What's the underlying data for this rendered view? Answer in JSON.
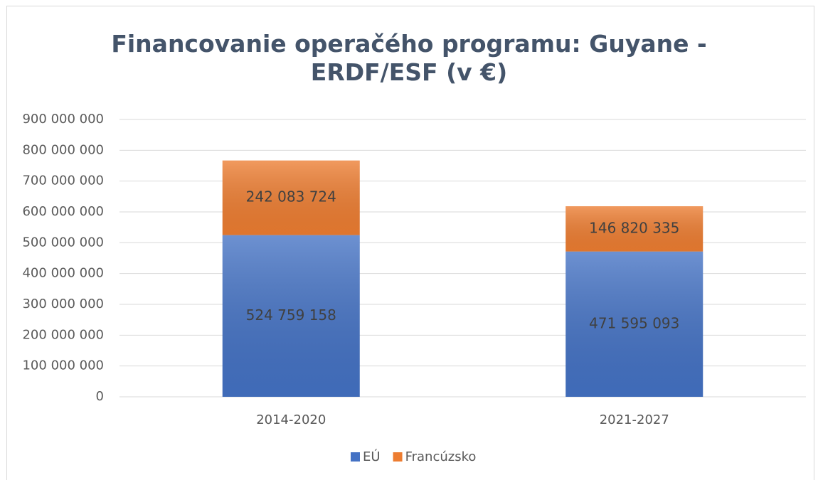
{
  "chart_data": {
    "type": "bar",
    "stacked": true,
    "title": "Financovanie operačého programu: Guyane - ERDF/ESF (v €)",
    "categories": [
      "2014-2020",
      "2021-2027"
    ],
    "series": [
      {
        "name": "EÚ",
        "color": "#4472c4",
        "values": [
          524759158,
          471595093
        ],
        "value_labels": [
          "524 759 158",
          "471 595 093"
        ]
      },
      {
        "name": "Francúzsko",
        "color": "#ed7d31",
        "values": [
          242083724,
          146820335
        ],
        "value_labels": [
          "242 083 724",
          "146 820 335"
        ]
      }
    ],
    "ylim": [
      0,
      900000000
    ],
    "yticks": [
      0,
      {
        "value": 100000000,
        "label": "100 000 000"
      },
      {
        "value": 200000000,
        "label": "200 000 000"
      },
      {
        "value": 300000000,
        "label": "300 000 000"
      },
      {
        "value": 400000000,
        "label": "400 000 000"
      },
      {
        "value": 500000000,
        "label": "500 000 000"
      },
      {
        "value": 600000000,
        "label": "600 000 000"
      },
      {
        "value": 700000000,
        "label": "700 000 000"
      },
      {
        "value": 800000000,
        "label": "800 000 000"
      },
      {
        "value": 900000000,
        "label": "900 000 000"
      }
    ],
    "grid": true,
    "legend": "bottom"
  }
}
